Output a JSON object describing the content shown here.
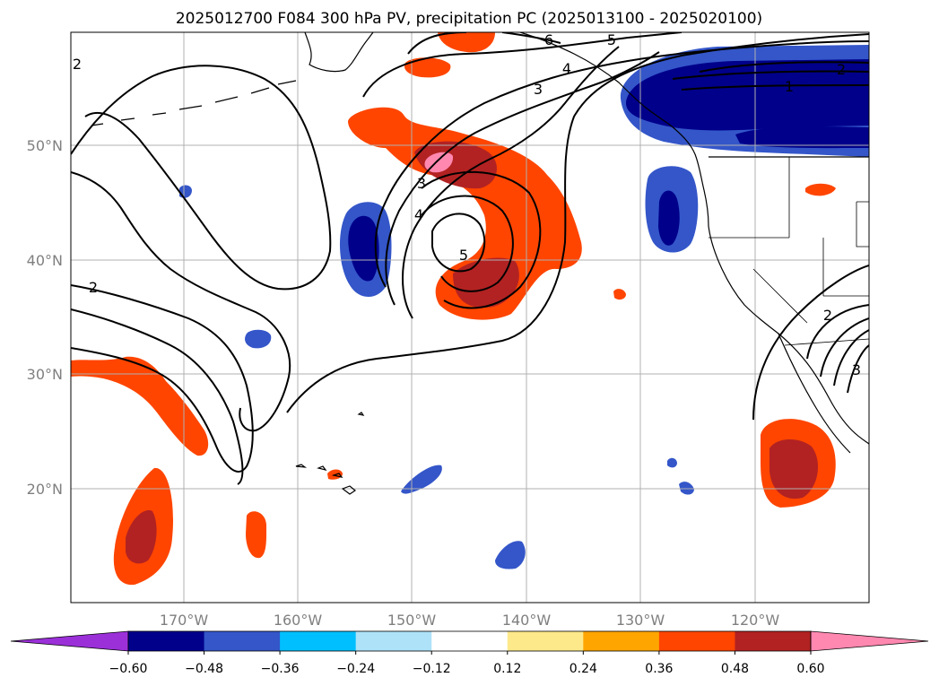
{
  "title": "2025012700 F084 300 hPa PV, precipitation PC (2025013100 - 2025020100)",
  "lon_labels": [
    "170°W",
    "160°W",
    "150°W",
    "140°W",
    "130°W",
    "120°W"
  ],
  "lat_labels": [
    "50°N",
    "40°N",
    "30°N",
    "20°N"
  ],
  "colorbar": {
    "ticks": [
      "−0.60",
      "−0.48",
      "−0.36",
      "−0.24",
      "−0.12",
      "0.12",
      "0.24",
      "0.36",
      "0.48",
      "0.60"
    ],
    "colors": [
      "#9b30d9",
      "#00008b",
      "#3456c9",
      "#00bfff",
      "#aee2f8",
      "#ffffff",
      "#fde98a",
      "#ffa500",
      "#ff4500",
      "#b22222",
      "#ff88b0"
    ]
  },
  "contour_labels": [
    "1",
    "2",
    "2",
    "2",
    "2",
    "3",
    "3",
    "3",
    "4",
    "4",
    "5",
    "5",
    "6"
  ]
}
